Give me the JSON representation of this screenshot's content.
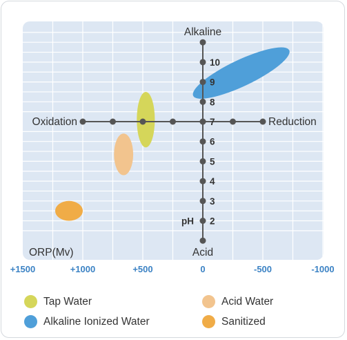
{
  "chart_data": {
    "type": "scatter",
    "title": "",
    "x_axis": {
      "label": "ORP(Mv)",
      "ticks": [
        1500,
        1000,
        500,
        0,
        -500,
        -1000
      ],
      "tick_labels": [
        "+1500",
        "+1000",
        "+500",
        "0",
        "-500",
        "-1000"
      ],
      "range": [
        1500,
        -1000
      ],
      "reversed": true,
      "left_label": "Oxidation",
      "right_label": "Reduction",
      "marker_values": [
        1000,
        750,
        500,
        250,
        0,
        -250,
        -500
      ]
    },
    "y_axis": {
      "label": "pH",
      "ticks": [
        2,
        3,
        4,
        5,
        6,
        7,
        8,
        9,
        10
      ],
      "tick_labels": [
        "2",
        "3",
        "4",
        "5",
        "6",
        "7",
        "8",
        "9",
        "10"
      ],
      "range": [
        1,
        11
      ],
      "top_label": "Alkaline",
      "bottom_label": "Acid",
      "marker_values": [
        1,
        2,
        3,
        4,
        5,
        6,
        7,
        8,
        9,
        10,
        11
      ]
    },
    "grid": true,
    "legend_position": "bottom",
    "series": [
      {
        "name": "Tap Water",
        "color": "#d5d65a",
        "orp": [
          550,
          400
        ],
        "ph": [
          5.7,
          8.5
        ]
      },
      {
        "name": "Acid Water",
        "color": "#f2c48e",
        "orp": [
          740,
          580
        ],
        "ph": [
          4.3,
          6.4
        ]
      },
      {
        "name": "Alkaline Ionized Water",
        "color": "#4f9fd9",
        "orp": [
          80,
          -720
        ],
        "ph": [
          8.3,
          10.6
        ]
      },
      {
        "name": "Sanitized",
        "color": "#f0ac47",
        "orp": [
          1230,
          1000
        ],
        "ph": [
          2.0,
          3.0
        ]
      }
    ]
  },
  "legend": [
    {
      "label": "Tap Water",
      "color": "#d5d65a"
    },
    {
      "label": "Acid Water",
      "color": "#f2c48e"
    },
    {
      "label": "Alkaline Ionized Water",
      "color": "#4f9fd9"
    },
    {
      "label": "Sanitized",
      "color": "#f0ac47"
    }
  ],
  "colors": {
    "plot_bg": "#dde7f3",
    "grid": "#ffffff",
    "axis": "#555555",
    "tick_label": "#3b82c4",
    "text": "#333333"
  }
}
